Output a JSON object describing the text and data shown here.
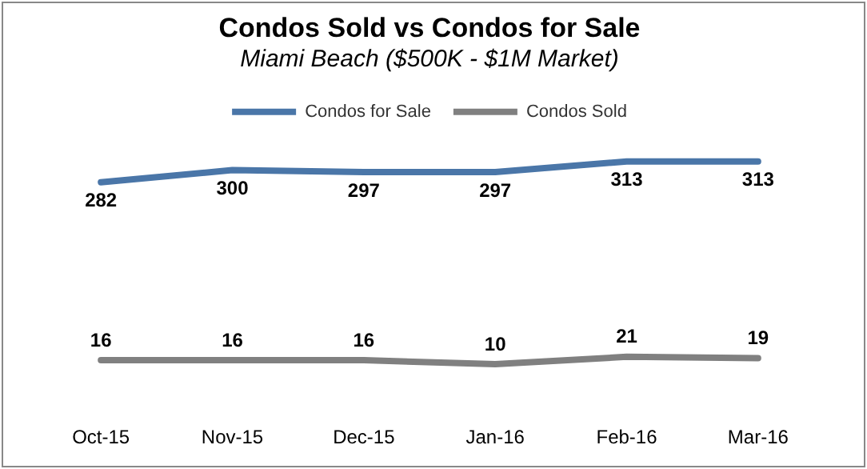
{
  "chart_data": {
    "type": "line",
    "title": "Condos Sold vs Condos for Sale",
    "subtitle": "Miami Beach ($500K - $1M Market)",
    "categories": [
      "Oct-15",
      "Nov-15",
      "Dec-15",
      "Jan-16",
      "Feb-16",
      "Mar-16"
    ],
    "series": [
      {
        "name": "Condos for Sale",
        "color": "#4a76a8",
        "values": [
          282,
          300,
          297,
          297,
          313,
          313
        ]
      },
      {
        "name": "Condos Sold",
        "color": "#808080",
        "values": [
          16,
          16,
          16,
          10,
          21,
          19
        ]
      }
    ],
    "tick_labels": "x",
    "legend": "top",
    "data_labels": true,
    "marker": "none",
    "line_style": "solid"
  }
}
